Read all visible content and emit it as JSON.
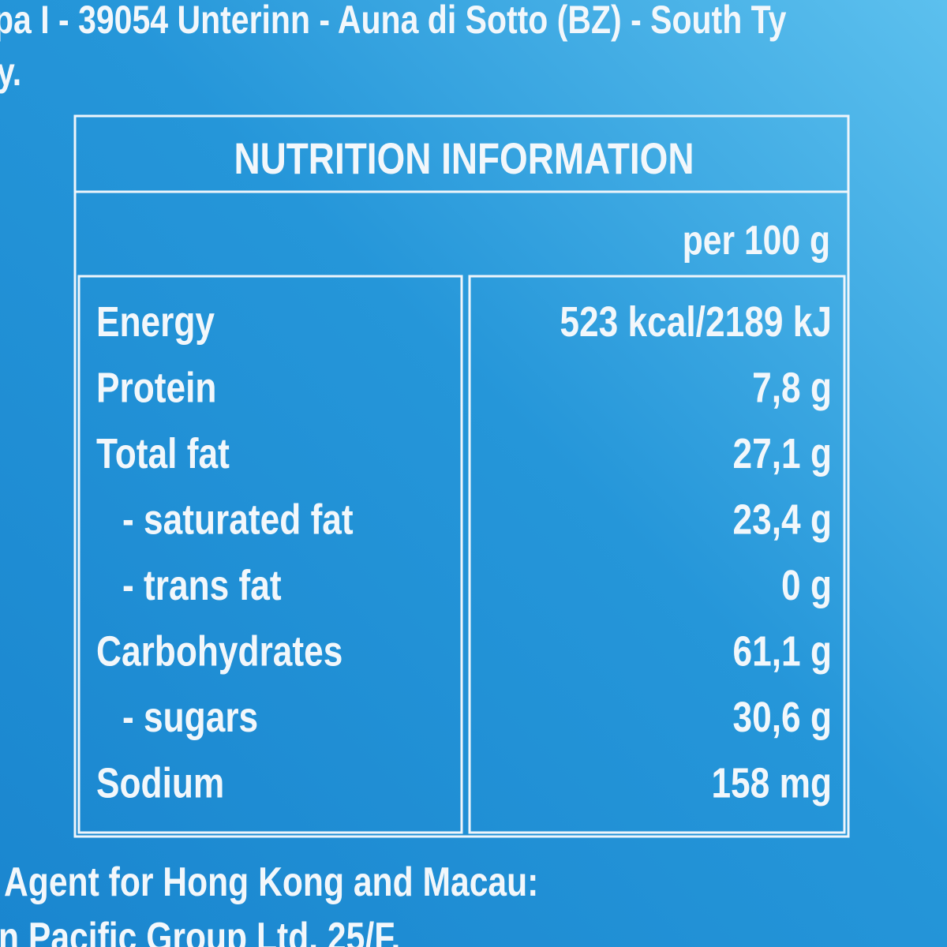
{
  "header_text": [
    "pa I - 39054 Unterinn - Auna di Sotto (BZ) - South Ty",
    "y."
  ],
  "table": {
    "title": "NUTRITION INFORMATION",
    "column_header": "per 100 g",
    "rows": [
      [
        "Energy",
        "523 kcal/2189 kJ"
      ],
      [
        "Protein",
        "7,8 g"
      ],
      [
        "Total fat",
        "27,1 g"
      ],
      [
        "- saturated fat",
        "23,4 g"
      ],
      [
        "- trans fat",
        "0 g"
      ],
      [
        "Carbohydrates",
        "61,1 g"
      ],
      [
        "- sugars",
        "30,6 g"
      ],
      [
        "Sodium",
        "158 mg"
      ]
    ]
  },
  "footer_text": [
    "Agent for Hong Kong and Macau:",
    "n Pacific Group Ltd. 25/F."
  ]
}
